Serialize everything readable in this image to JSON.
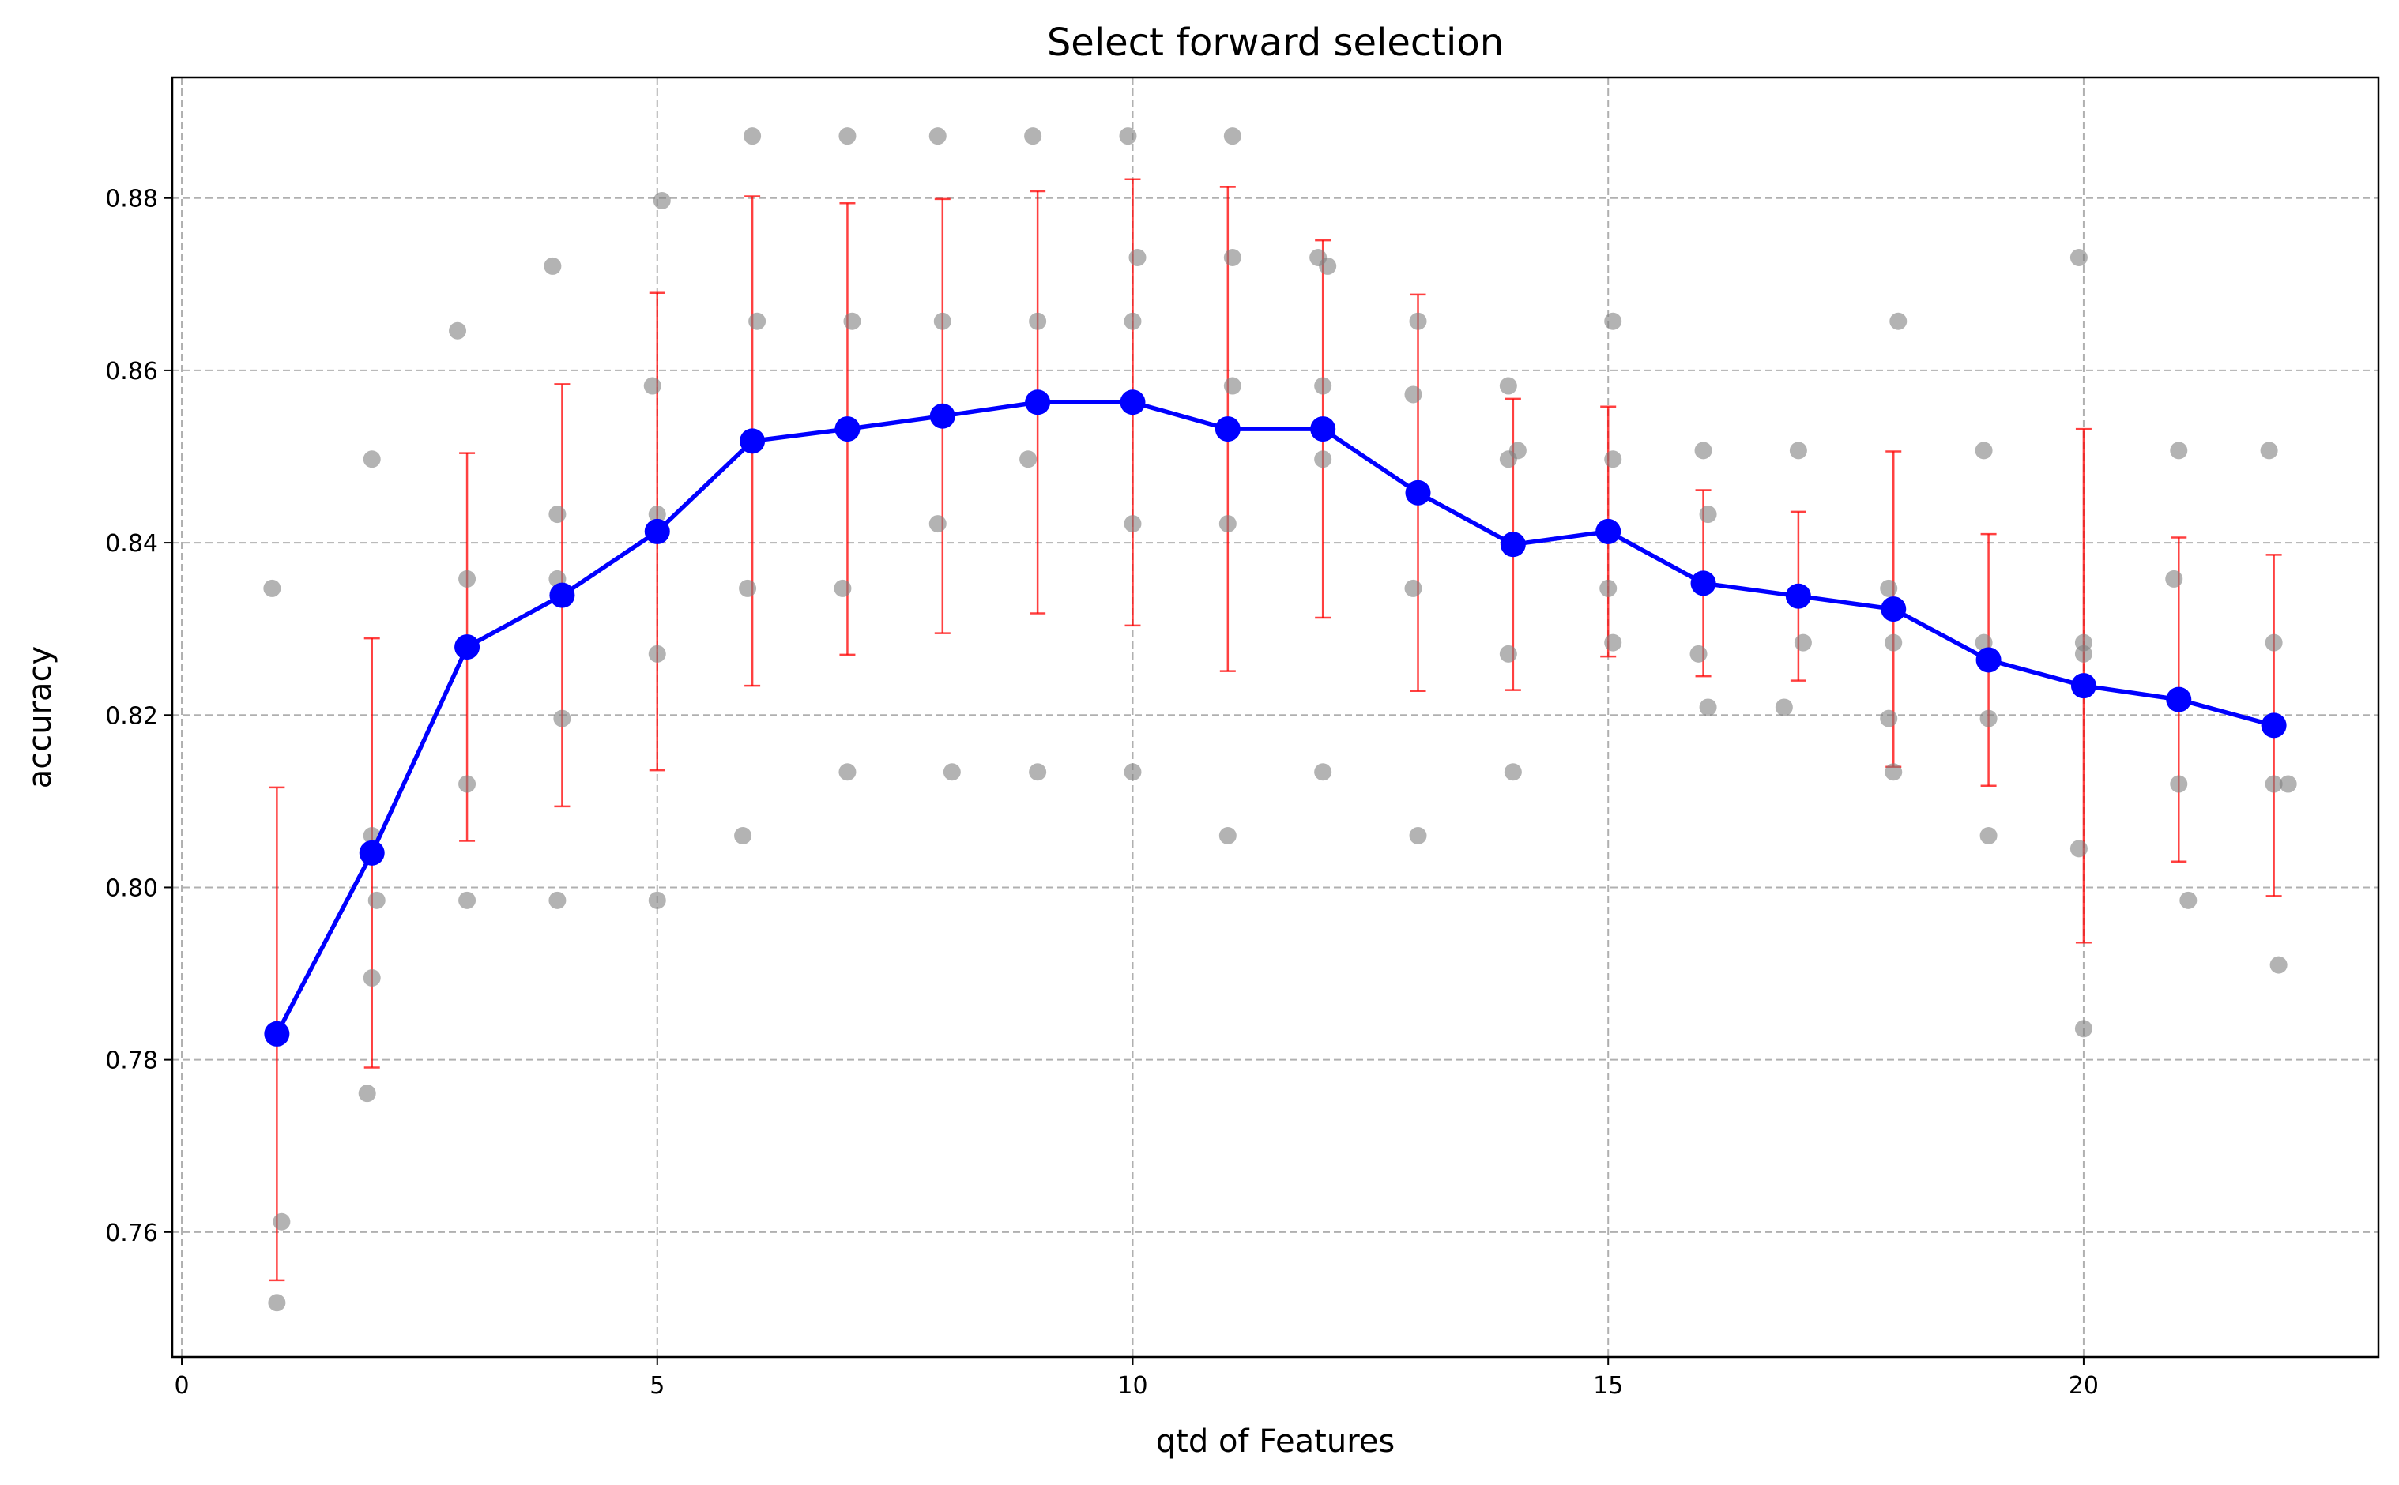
{
  "chart_data": {
    "type": "line",
    "title": "Select forward selection",
    "xlabel": "qtd of Features",
    "ylabel": "accuracy",
    "xlim": [
      -0.1,
      23.1
    ],
    "ylim": [
      0.7455,
      0.894
    ],
    "x_ticks": [
      0,
      5,
      10,
      15,
      20
    ],
    "y_ticks": [
      0.76,
      0.78,
      0.8,
      0.82,
      0.84,
      0.86,
      0.88
    ],
    "y_tick_labels": [
      "0.76",
      "0.78",
      "0.80",
      "0.82",
      "0.84",
      "0.86",
      "0.88"
    ],
    "grid": true,
    "colors": {
      "mean_line": "#0000ff",
      "error_bars": "#ff0000",
      "scatter": "#808080"
    },
    "series": [
      {
        "type": "line",
        "x": [
          1,
          2,
          3,
          4,
          5,
          6,
          7,
          8,
          9,
          10,
          11,
          12,
          13,
          14,
          15,
          16,
          17,
          18,
          19,
          20,
          21,
          22
        ],
        "values": [
          0.783,
          0.804,
          0.8279,
          0.8339,
          0.8413,
          0.8518,
          0.8532,
          0.8547,
          0.8563,
          0.8563,
          0.8532,
          0.8532,
          0.8458,
          0.8398,
          0.8413,
          0.8353,
          0.8338,
          0.8323,
          0.8264,
          0.8234,
          0.8218,
          0.8188
        ],
        "error": [
          0.0286,
          0.0249,
          0.0225,
          0.0245,
          0.0277,
          0.0284,
          0.0262,
          0.0252,
          0.0245,
          0.0259,
          0.0281,
          0.0219,
          0.023,
          0.0169,
          0.0145,
          0.0108,
          0.0098,
          0.0183,
          0.0146,
          0.0298,
          0.0188,
          0.0198
        ]
      },
      {
        "type": "scatter",
        "points": [
          [
            0.95,
            0.8347
          ],
          [
            1.0,
            0.7835
          ],
          [
            1.05,
            0.7612
          ],
          [
            1.0,
            0.7518
          ],
          [
            2.0,
            0.8497
          ],
          [
            2.0,
            0.806
          ],
          [
            2.05,
            0.7985
          ],
          [
            2.0,
            0.7895
          ],
          [
            1.95,
            0.7761
          ],
          [
            2.9,
            0.8646
          ],
          [
            3.0,
            0.8358
          ],
          [
            3.0,
            0.812
          ],
          [
            3.0,
            0.7985
          ],
          [
            3.9,
            0.8721
          ],
          [
            3.95,
            0.8433
          ],
          [
            3.95,
            0.8358
          ],
          [
            4.0,
            0.8196
          ],
          [
            3.95,
            0.7985
          ],
          [
            5.05,
            0.8797
          ],
          [
            4.95,
            0.8582
          ],
          [
            5.0,
            0.8433
          ],
          [
            5.0,
            0.8271
          ],
          [
            5.0,
            0.7985
          ],
          [
            6.0,
            0.8872
          ],
          [
            6.05,
            0.8657
          ],
          [
            5.95,
            0.8347
          ],
          [
            5.9,
            0.806
          ],
          [
            7.0,
            0.8872
          ],
          [
            7.05,
            0.8657
          ],
          [
            6.95,
            0.8347
          ],
          [
            7.0,
            0.8134
          ],
          [
            7.95,
            0.8872
          ],
          [
            8.0,
            0.8657
          ],
          [
            7.95,
            0.8422
          ],
          [
            8.1,
            0.8134
          ],
          [
            8.95,
            0.8872
          ],
          [
            9.0,
            0.8657
          ],
          [
            8.9,
            0.8497
          ],
          [
            9.0,
            0.8134
          ],
          [
            9.95,
            0.8872
          ],
          [
            10.05,
            0.8731
          ],
          [
            10.0,
            0.8657
          ],
          [
            10.0,
            0.8422
          ],
          [
            10.0,
            0.8134
          ],
          [
            11.05,
            0.8872
          ],
          [
            11.05,
            0.8731
          ],
          [
            11.05,
            0.8582
          ],
          [
            11.0,
            0.8422
          ],
          [
            11.0,
            0.806
          ],
          [
            11.95,
            0.8731
          ],
          [
            12.05,
            0.8721
          ],
          [
            12.0,
            0.8582
          ],
          [
            12.0,
            0.8497
          ],
          [
            12.0,
            0.8134
          ],
          [
            13.0,
            0.8657
          ],
          [
            12.95,
            0.8572
          ],
          [
            12.95,
            0.8347
          ],
          [
            13.0,
            0.806
          ],
          [
            13.95,
            0.8582
          ],
          [
            14.05,
            0.8507
          ],
          [
            13.95,
            0.8497
          ],
          [
            13.95,
            0.8271
          ],
          [
            14.0,
            0.8134
          ],
          [
            15.05,
            0.8657
          ],
          [
            15.05,
            0.8497
          ],
          [
            15.0,
            0.8347
          ],
          [
            15.05,
            0.8284
          ],
          [
            16.0,
            0.8507
          ],
          [
            16.05,
            0.8433
          ],
          [
            15.95,
            0.8271
          ],
          [
            16.05,
            0.8209
          ],
          [
            17.0,
            0.8507
          ],
          [
            17.05,
            0.8284
          ],
          [
            16.85,
            0.8209
          ],
          [
            18.05,
            0.8657
          ],
          [
            17.95,
            0.8347
          ],
          [
            18.0,
            0.8284
          ],
          [
            17.95,
            0.8196
          ],
          [
            18.0,
            0.8134
          ],
          [
            18.95,
            0.8507
          ],
          [
            18.95,
            0.8284
          ],
          [
            19.0,
            0.8196
          ],
          [
            19.0,
            0.806
          ],
          [
            19.95,
            0.8731
          ],
          [
            20.0,
            0.8284
          ],
          [
            20.0,
            0.8271
          ],
          [
            19.95,
            0.8045
          ],
          [
            20.0,
            0.7836
          ],
          [
            21.0,
            0.8507
          ],
          [
            20.95,
            0.8358
          ],
          [
            21.0,
            0.812
          ],
          [
            21.1,
            0.7985
          ],
          [
            21.95,
            0.8507
          ],
          [
            22.0,
            0.8284
          ],
          [
            22.0,
            0.812
          ],
          [
            22.15,
            0.812
          ],
          [
            22.05,
            0.791
          ]
        ]
      }
    ]
  }
}
